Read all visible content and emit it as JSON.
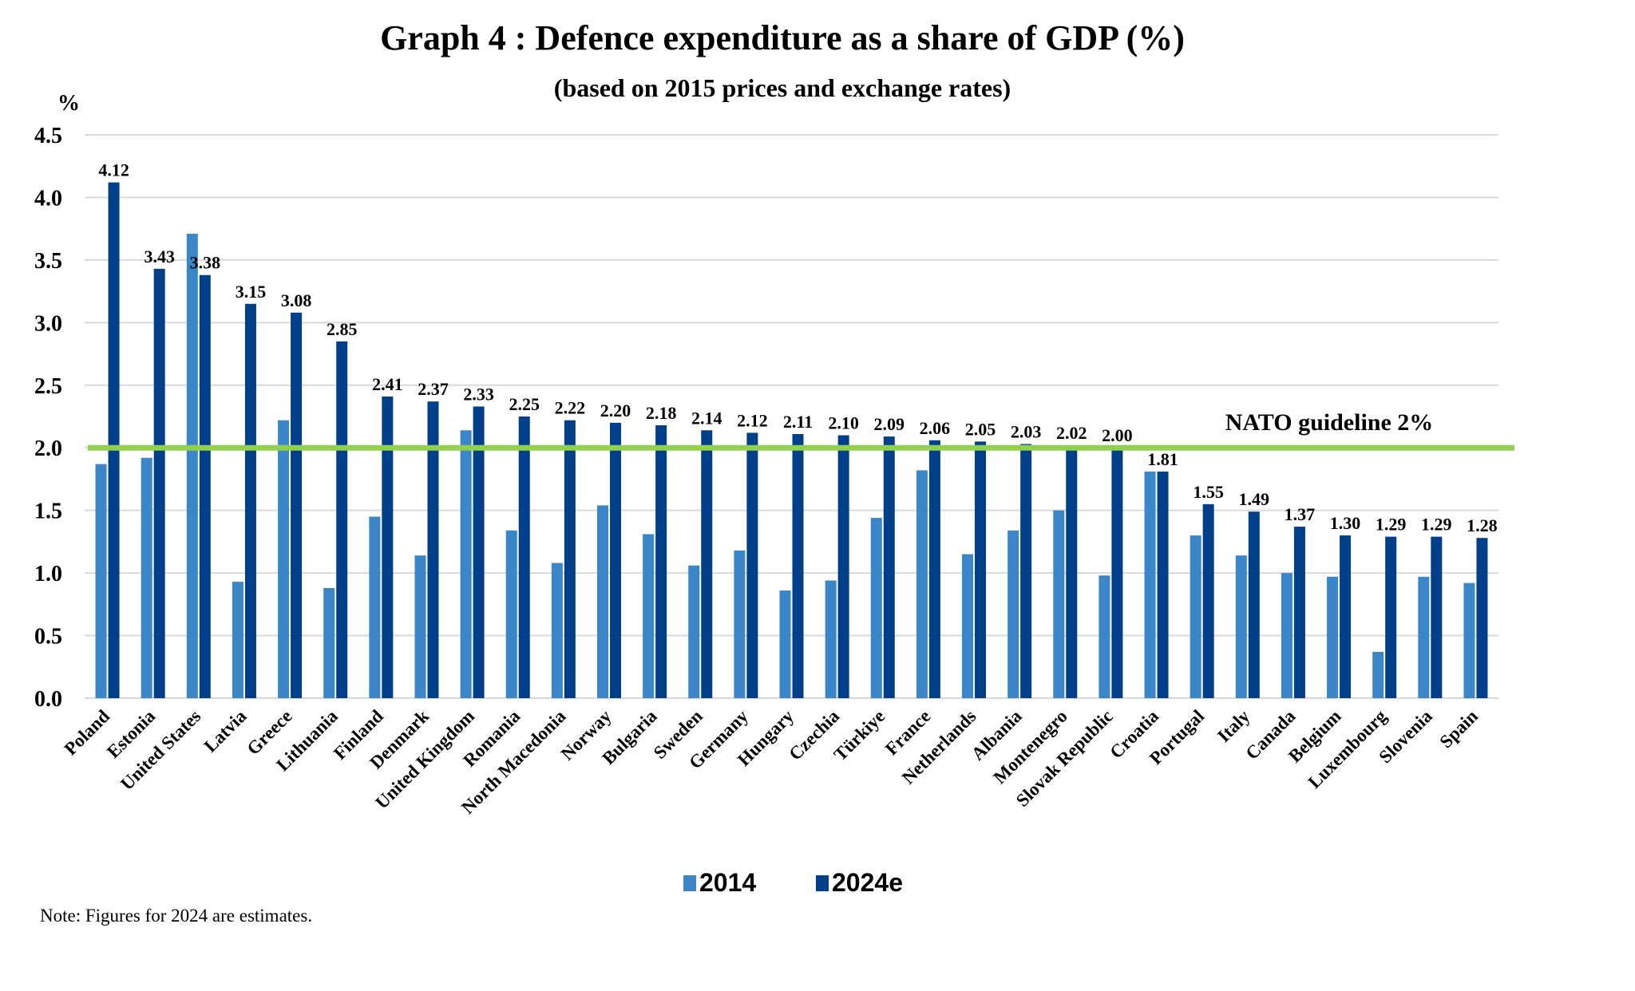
{
  "title": "Graph 4 : Defence expenditure as a share of GDP (%)",
  "subtitle": "(based on 2015 prices and exchange rates)",
  "note": "Note: Figures for 2024 are estimates.",
  "colors": {
    "series_2014": "#3A86C8",
    "series_2024e": "#00408A",
    "nato_line": "#92D050",
    "gridline": "#D9D9D9"
  },
  "chart_data": {
    "type": "bar",
    "title": "Graph 4 : Defence expenditure as a share of GDP (%)",
    "subtitle": "(based on 2015 prices and exchange rates)",
    "xlabel": "",
    "ylabel": "%",
    "ylim": [
      0,
      4.5
    ],
    "yticks": [
      "0.0",
      "0.5",
      "1.0",
      "1.5",
      "2.0",
      "2.5",
      "3.0",
      "3.5",
      "4.0",
      "4.5"
    ],
    "grid": true,
    "legend_position": "bottom-center",
    "categories": [
      "Poland",
      "Estonia",
      "United States",
      "Latvia",
      "Greece",
      "Lithuania",
      "Finland",
      "Denmark",
      "United Kingdom",
      "Romania",
      "North Macedonia",
      "Norway",
      "Bulgaria",
      "Sweden",
      "Germany",
      "Hungary",
      "Czechia",
      "Türkiye",
      "France",
      "Netherlands",
      "Albania",
      "Montenegro",
      "Slovak Republic",
      "Croatia",
      "Portugal",
      "Italy",
      "Canada",
      "Belgium",
      "Luxembourg",
      "Slovenia",
      "Spain"
    ],
    "series": [
      {
        "name": "2014",
        "values": [
          1.87,
          1.92,
          3.71,
          0.93,
          2.22,
          0.88,
          1.45,
          1.14,
          2.14,
          1.34,
          1.08,
          1.54,
          1.31,
          1.06,
          1.18,
          0.86,
          0.94,
          1.44,
          1.82,
          1.15,
          1.34,
          1.5,
          0.98,
          1.81,
          1.3,
          1.14,
          1.0,
          0.97,
          0.37,
          0.97,
          0.92
        ],
        "data_labels": false
      },
      {
        "name": "2024e",
        "values": [
          4.12,
          3.43,
          3.38,
          3.15,
          3.08,
          2.85,
          2.41,
          2.37,
          2.33,
          2.25,
          2.22,
          2.2,
          2.18,
          2.14,
          2.12,
          2.11,
          2.1,
          2.09,
          2.06,
          2.05,
          2.03,
          2.02,
          2.0,
          1.81,
          1.55,
          1.49,
          1.37,
          1.3,
          1.29,
          1.29,
          1.28
        ],
        "data_labels": true
      }
    ],
    "reference_line": {
      "label": "NATO guideline 2%",
      "value": 2.0
    }
  }
}
